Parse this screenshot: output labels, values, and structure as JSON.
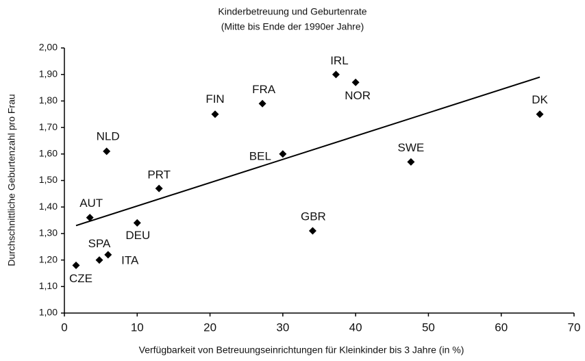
{
  "chart_data": {
    "type": "scatter",
    "title": "Kinderbetreuung und Geburtenrate",
    "subtitle": "(Mitte bis Ende der 1990er Jahre)",
    "xlabel": "Verfügbarkeit von Betreuungseinrichtungen für Kleinkinder bis 3 Jahre (in %)",
    "ylabel": "Durchschnittliche Geburtenzahl pro Frau",
    "color": "#000000",
    "labels": [
      "CZE",
      "SPA",
      "ITA",
      "AUT",
      "DEU",
      "NLD",
      "PRT",
      "FIN",
      "FRA",
      "BEL",
      "GBR",
      "IRL",
      "NOR",
      "SWE",
      "DK"
    ],
    "x": [
      1.6,
      4.8,
      6.0,
      3.5,
      10.0,
      5.8,
      13.0,
      20.7,
      27.2,
      30.0,
      34.1,
      37.3,
      40.0,
      47.6,
      65.3
    ],
    "values": [
      1.18,
      1.2,
      1.22,
      1.36,
      1.34,
      1.61,
      1.47,
      1.75,
      1.79,
      1.6,
      1.31,
      1.9,
      1.87,
      1.57,
      1.75
    ],
    "trendline": {
      "x": [
        1.6,
        65.3
      ],
      "values": [
        1.33,
        1.89
      ]
    },
    "xlim": [
      0,
      70
    ],
    "xticks": [
      0,
      10,
      20,
      30,
      40,
      50,
      60,
      70
    ],
    "ylim": [
      1.0,
      2.0
    ],
    "yticks": [
      {
        "value": 1.0,
        "label": "1,00"
      },
      {
        "value": 1.1,
        "label": "1,10"
      },
      {
        "value": 1.2,
        "label": "1,20"
      },
      {
        "value": 1.3,
        "label": "1,30"
      },
      {
        "value": 1.4,
        "label": "1,40"
      },
      {
        "value": 1.5,
        "label": "1,50"
      },
      {
        "value": 1.6,
        "label": "1,60"
      },
      {
        "value": 1.7,
        "label": "1,70"
      },
      {
        "value": 1.8,
        "label": "1,80"
      },
      {
        "value": 1.9,
        "label": "1,90"
      },
      {
        "value": 2.0,
        "label": "2,00"
      }
    ]
  }
}
